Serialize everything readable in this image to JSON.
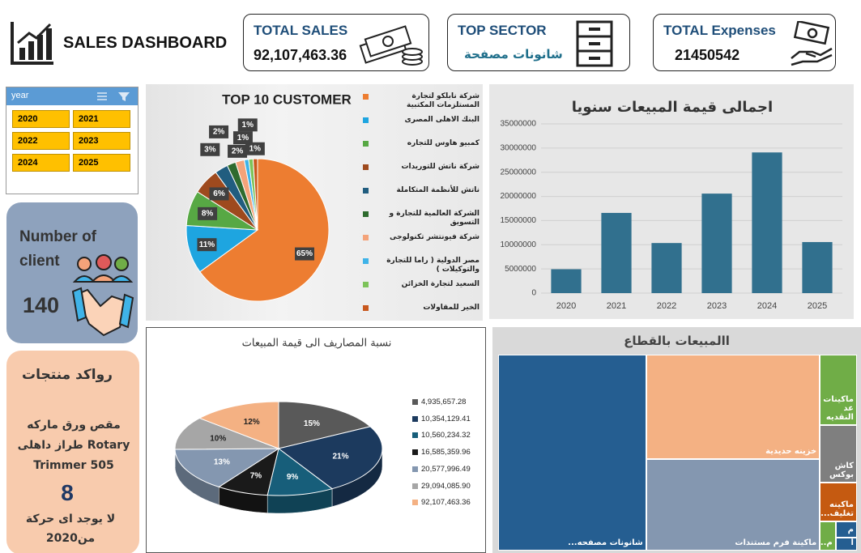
{
  "header": {
    "title": "SALES DASHBOARD"
  },
  "kpis": [
    {
      "label": "TOTAL SALES",
      "value": "92,107,463.36"
    },
    {
      "label": "TOP SECTOR",
      "value": "شانونات مصفحة"
    },
    {
      "label": "TOTAL Expenses",
      "value": "21450542"
    }
  ],
  "slicer": {
    "title": "year",
    "items": [
      "2020",
      "2021",
      "2022",
      "2023",
      "2024",
      "2025"
    ]
  },
  "clients": {
    "label": "Number of client",
    "value": "140"
  },
  "stagnant": {
    "title": "رواكد منتجات",
    "product": "مقص ورق ماركه Rotary طراز داهلى Trimmer 505",
    "count": "8",
    "note": "لا يوجد اى حركة من2020"
  },
  "chart_data": [
    {
      "type": "pie",
      "title": "TOP 10 CUSTOMER",
      "categories": [
        "شركة نابلكو لتجارة المستلزمات المكتبية",
        "البنك الاهلى المصرى",
        "كمبيو هاوس للتجاره",
        "شركة ناتش للتوريدات",
        "ناتش للأنظمة المتكاملة",
        "الشركة العالمية للتجارة و التسويق",
        "شركة فيونتشر تكنولوجى",
        "مصر الدولية ( راما للتجارة والتوكيلات )",
        "السعيد لتجارة الخزائن",
        "الخير للمقاولات"
      ],
      "values": [
        65,
        11,
        8,
        6,
        3,
        2,
        2,
        1,
        1,
        1
      ],
      "value_labels": [
        "65%",
        "11%",
        "8%",
        "6%",
        "3%",
        "2%",
        "2%",
        "1%",
        "1%",
        "1%"
      ],
      "colors": [
        "#ed7d31",
        "#1ea5e0",
        "#57a844",
        "#9e4a1e",
        "#215d7f",
        "#2e6b2e",
        "#f4a37a",
        "#3fb3e8",
        "#7dc35a",
        "#c8581e"
      ],
      "legend": "right"
    },
    {
      "type": "bar",
      "title": "اجمالى قيمة المبيعات سنويا",
      "categories": [
        "2020",
        "2021",
        "2022",
        "2023",
        "2024",
        "2025"
      ],
      "values": [
        4935657.28,
        16585359.96,
        10354129.41,
        20577996.49,
        29094085.9,
        10560234.32
      ],
      "color": "#31708e",
      "ylim": [
        0,
        35000000
      ],
      "yticks": [
        0,
        5000000,
        10000000,
        15000000,
        20000000,
        25000000,
        30000000,
        35000000
      ],
      "grid": true
    },
    {
      "type": "pie",
      "3d": true,
      "title": "نسبة المصاريف الى قيمة المبيعات",
      "categories": [
        "4,935,657.28",
        "10,354,129.41",
        "10,560,234.32",
        "16,585,359.96",
        "20,577,996.49",
        "29,094,085.90",
        "92,107,463.36"
      ],
      "values": [
        15,
        21,
        9,
        7,
        13,
        10,
        12
      ],
      "value_labels": [
        "15%",
        "21%",
        "9%",
        "7%",
        "13%",
        "10%",
        "12%"
      ],
      "colors": [
        "#595959",
        "#1c3a5e",
        "#175e7a",
        "#1a1a1a",
        "#8497b0",
        "#a6a6a6",
        "#f4b183"
      ],
      "legend": "right"
    },
    {
      "type": "treemap",
      "title": "االمبيعات بالقطاع",
      "categories": [
        "شانونات مصفحه...",
        "خزينه حديدية",
        "ماكينة فرم مستندات",
        "ماكينات عد النقديه",
        "كاش بوكس",
        "ماكينه تغليف...",
        "م...",
        "م",
        "أ"
      ],
      "values": [
        38000000,
        23700000,
        20900000,
        3400000,
        2800000,
        1900000,
        600000,
        450000,
        357463
      ],
      "colors": [
        "#255e91",
        "#f4b183",
        "#8497b0",
        "#70ad47",
        "#7f7f7f",
        "#c55a11",
        "#70ad47",
        "#255e91",
        "#255e91"
      ]
    }
  ]
}
